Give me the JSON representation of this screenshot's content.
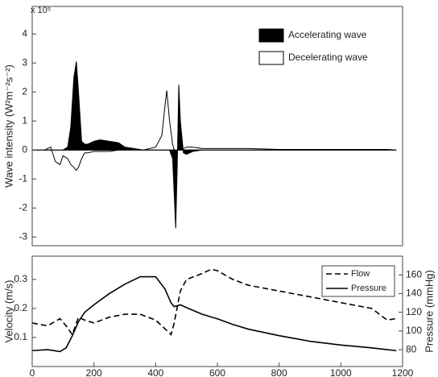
{
  "chart_data": [
    {
      "type": "area",
      "multiplier": "x 10⁵",
      "y_label": "Wave intensity (W²m⁻²s⁻²)",
      "x": [
        0,
        40,
        60,
        75,
        90,
        100,
        115,
        125,
        135,
        143,
        150,
        160,
        170,
        180,
        200,
        220,
        250,
        280,
        300,
        330,
        360,
        400,
        420,
        430,
        436,
        445,
        455,
        460,
        465,
        470,
        475,
        480,
        490,
        500,
        520,
        550,
        600,
        700,
        800,
        900,
        1000,
        1100,
        1150,
        1180
      ],
      "xlim": [
        0,
        1200
      ],
      "ylim": [
        -3.3,
        4.95
      ],
      "yticks": [
        -3,
        -2,
        -1,
        0,
        1,
        2,
        3,
        4
      ],
      "legend": "upper right",
      "series": [
        {
          "name": "Decelerating  wave",
          "color": "#ffffff",
          "edgecolor": "#000000",
          "values": [
            0,
            0,
            0.1,
            -0.4,
            -0.5,
            -0.2,
            -0.3,
            -0.5,
            -0.6,
            -0.7,
            -0.6,
            -0.3,
            -0.1,
            -0.1,
            -0.05,
            -0.05,
            -0.05,
            0,
            0,
            0,
            0,
            0.1,
            0.5,
            1.5,
            2.05,
            1.0,
            0.2,
            0,
            0,
            0,
            0,
            0,
            0.05,
            0.1,
            0.1,
            0.05,
            0.05,
            0.05,
            0.02,
            0.02,
            0.02,
            0.02,
            0.02,
            0
          ]
        },
        {
          "name": "Accelerating  wave",
          "color": "#000000",
          "edgecolor": "#000000",
          "values": [
            0,
            0,
            0,
            0,
            0,
            0,
            0.1,
            0.8,
            2.5,
            3.05,
            2.0,
            0.3,
            0.2,
            0.2,
            0.3,
            0.35,
            0.3,
            0.25,
            0.1,
            0.05,
            0,
            0,
            0,
            0,
            0,
            0,
            -0.3,
            -1.5,
            -2.7,
            -0.5,
            2.25,
            1.0,
            -0.1,
            -0.15,
            -0.05,
            0,
            0,
            0,
            0,
            0,
            0,
            0,
            0,
            0
          ]
        }
      ]
    },
    {
      "type": "line",
      "y_label": "Velocity (m/s)",
      "y2_label": "Pressure (mmHg)",
      "x": [
        0,
        50,
        90,
        110,
        130,
        150,
        170,
        200,
        250,
        300,
        350,
        400,
        430,
        450,
        460,
        480,
        500,
        550,
        580,
        600,
        650,
        700,
        800,
        900,
        1000,
        1100,
        1150,
        1180
      ],
      "xlim": [
        0,
        1200
      ],
      "xticks": [
        0,
        200,
        400,
        600,
        800,
        1000,
        1200
      ],
      "ylim": [
        0,
        0.38
      ],
      "yticks": [
        0.1,
        0.2,
        0.3
      ],
      "y2lim": [
        62,
        180
      ],
      "y2ticks": [
        80,
        100,
        120,
        140,
        160
      ],
      "legend": "upper right",
      "series": [
        {
          "name": "Flow",
          "color": "#000000",
          "linestyle": "dashed",
          "values": [
            0.15,
            0.14,
            0.165,
            0.14,
            0.11,
            0.17,
            0.16,
            0.15,
            0.17,
            0.18,
            0.18,
            0.16,
            0.13,
            0.11,
            0.15,
            0.26,
            0.3,
            0.32,
            0.335,
            0.33,
            0.3,
            0.28,
            0.26,
            0.24,
            0.22,
            0.2,
            0.16,
            0.165
          ]
        },
        {
          "name": "Pressure",
          "color": "#000000",
          "linestyle": "solid",
          "axis": "y2",
          "values": [
            79,
            80,
            78,
            82,
            95,
            110,
            120,
            128,
            140,
            150,
            158,
            158,
            145,
            130,
            126,
            128,
            125,
            118,
            115,
            113,
            107,
            102,
            95,
            89,
            85,
            82,
            80,
            79
          ]
        }
      ]
    }
  ]
}
